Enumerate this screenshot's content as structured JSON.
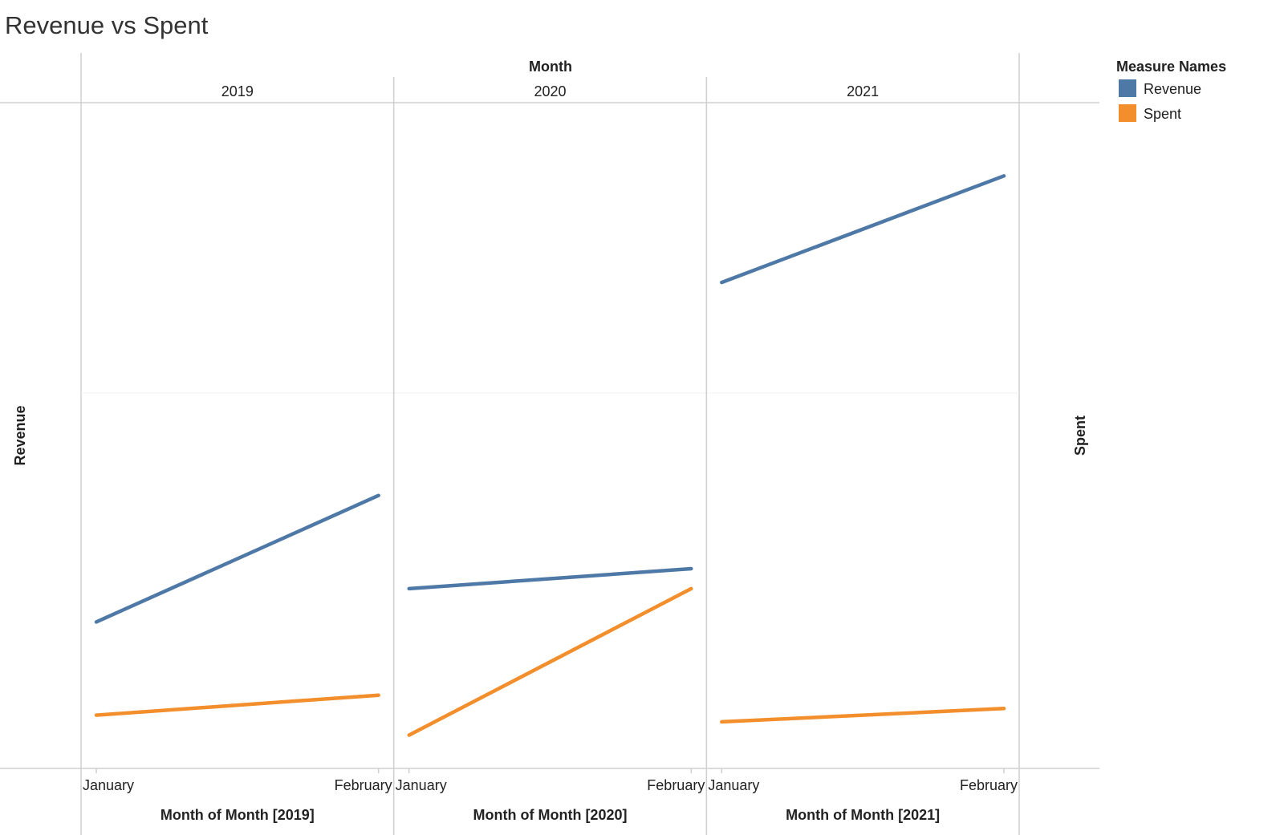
{
  "chart_data": {
    "type": "line",
    "title": "Revenue vs Spent",
    "column_header": "Month",
    "left_axis_label": "Revenue",
    "right_axis_label": "Spent",
    "grid": true,
    "legend": {
      "title": "Measure Names",
      "placement": "top-right",
      "entries": [
        {
          "name": "Revenue",
          "color": "#4e79a7"
        },
        {
          "name": "Spent",
          "color": "#f28e2b"
        }
      ]
    },
    "categories": [
      "January",
      "February"
    ],
    "panels": [
      {
        "year": "2019",
        "xlabel": "Month of Month [2019]"
      },
      {
        "year": "2020",
        "xlabel": "Month of Month [2020]"
      },
      {
        "year": "2021",
        "xlabel": "Month of Month [2021]"
      }
    ],
    "ylim": [
      0,
      100
    ],
    "series": [
      {
        "name": "Revenue",
        "color": "#4e79a7",
        "values": [
          [
            22,
            41
          ],
          [
            27,
            30
          ],
          [
            73,
            89
          ]
        ]
      },
      {
        "name": "Spent",
        "color": "#f28e2b",
        "values": [
          [
            8,
            11
          ],
          [
            5,
            27
          ],
          [
            7,
            9
          ]
        ]
      }
    ]
  }
}
